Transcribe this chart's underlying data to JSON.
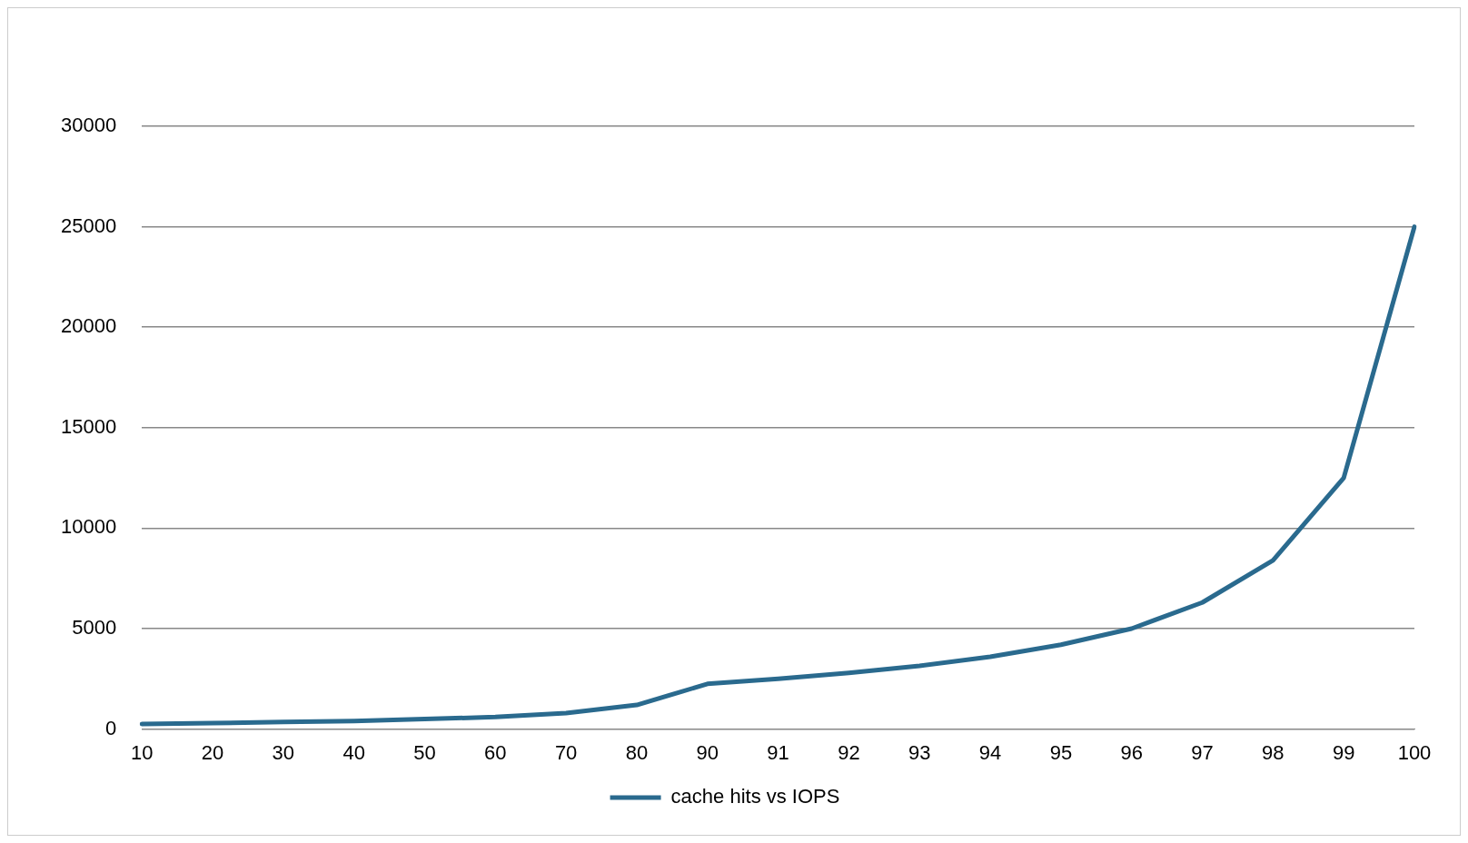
{
  "chart_data": {
    "type": "line",
    "categories": [
      "10",
      "20",
      "30",
      "40",
      "50",
      "60",
      "70",
      "80",
      "90",
      "91",
      "92",
      "93",
      "94",
      "95",
      "96",
      "97",
      "98",
      "99",
      "100"
    ],
    "series": [
      {
        "name": "cache hits vs IOPS",
        "color": "#2a6a8e",
        "values": [
          250,
          300,
          350,
          400,
          500,
          600,
          800,
          1200,
          2250,
          2500,
          2800,
          3150,
          3600,
          4200,
          5000,
          6300,
          8400,
          12500,
          25000
        ]
      }
    ],
    "ylim": [
      0,
      30000
    ],
    "yticks": [
      0,
      5000,
      10000,
      15000,
      20000,
      25000,
      30000
    ],
    "grid": "y",
    "legend": "bottom",
    "marker": "none",
    "line_style": "solid"
  }
}
